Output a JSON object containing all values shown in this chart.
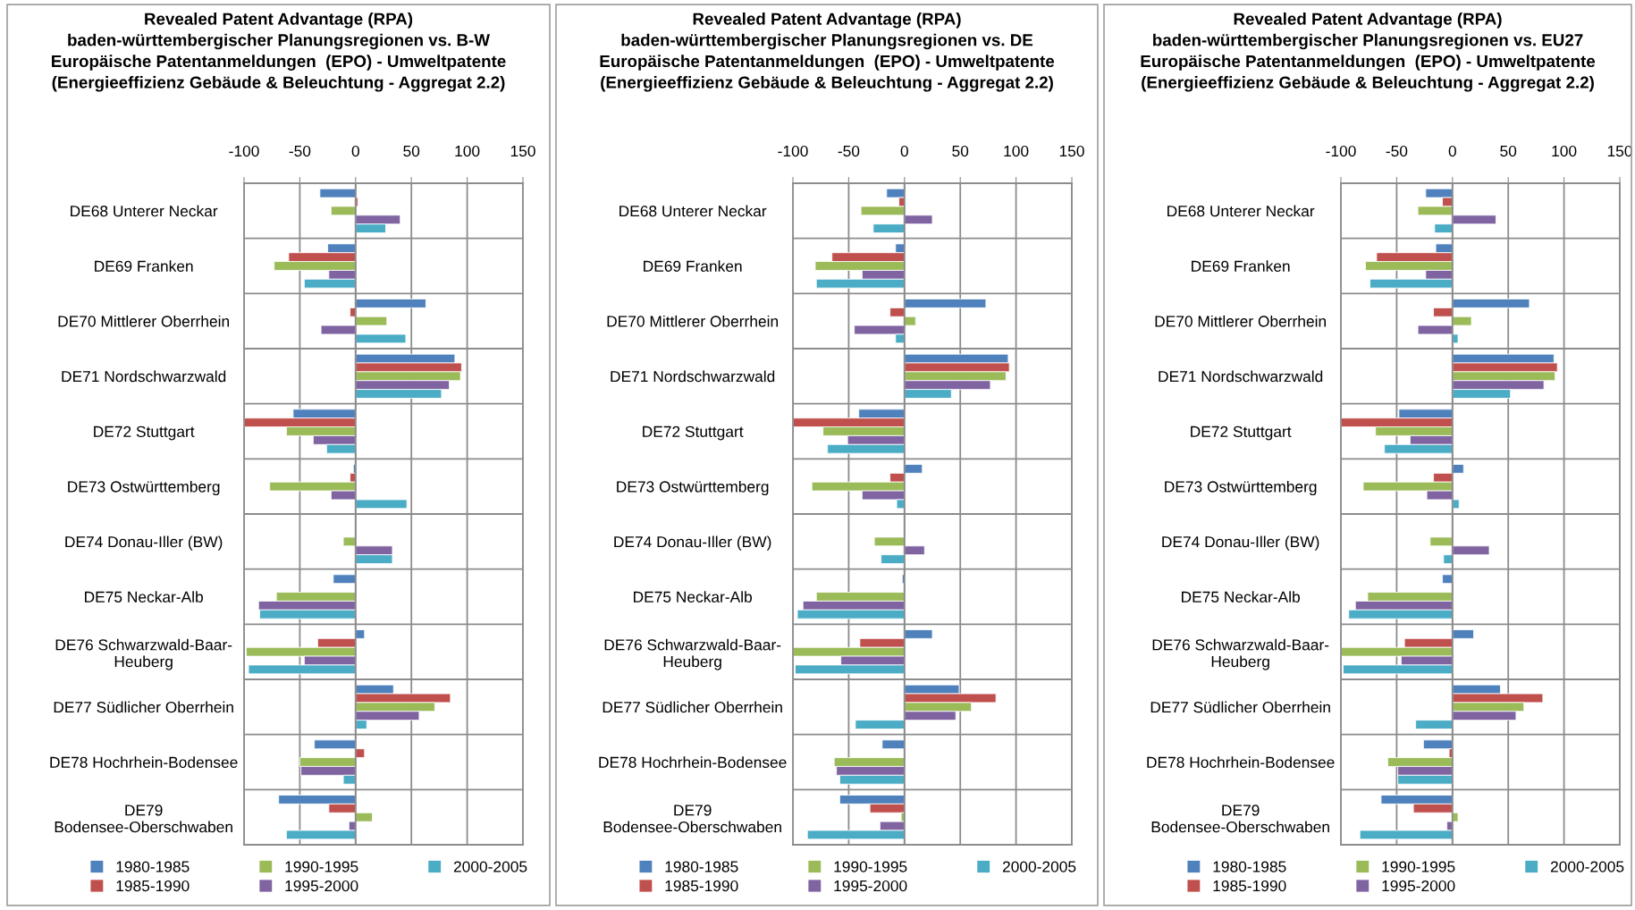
{
  "chart_data": [
    {
      "type": "bar",
      "orientation": "horizontal",
      "title": "Revealed Patent Advantage (RPA)\nbaden-württembergischer Planungsregionen vs. B-W\nEuropäische Patentanmeldungen  (EPO) - Umweltpatente\n(Energieeffizienz Gebäude & Beleuchtung - Aggregat 2.2)",
      "categories": [
        "DE68 Unterer Neckar",
        "DE69 Franken",
        "DE70 Mittlerer Oberrhein",
        "DE71 Nordschwarzwald",
        "DE72 Stuttgart",
        "DE73 Ostwürttemberg",
        "DE74 Donau-Iller (BW)",
        "DE75 Neckar-Alb",
        "DE76 Schwarzwald-Baar-\nHeuberg",
        "DE77 Südlicher Oberrhein",
        "DE78 Hochrhein-Bodensee",
        "DE79\nBodensee-Oberschwaben"
      ],
      "series": [
        {
          "name": "1980-1985",
          "color": "#4f81bd",
          "values": [
            -32,
            -25,
            63,
            89,
            -56,
            -2,
            null,
            -20,
            8,
            34,
            -37,
            -69
          ]
        },
        {
          "name": "1985-1990",
          "color": "#c0504d",
          "values": [
            2,
            -60,
            -5,
            95,
            -100,
            -5,
            null,
            null,
            -34,
            85,
            8,
            -24
          ]
        },
        {
          "name": "1990-1995",
          "color": "#9bbb59",
          "values": [
            -22,
            -73,
            28,
            94,
            -62,
            -77,
            -11,
            -71,
            -98,
            71,
            -50,
            15
          ]
        },
        {
          "name": "1995-2000",
          "color": "#8064a2",
          "values": [
            40,
            -24,
            -31,
            84,
            -38,
            -22,
            33,
            -87,
            -46,
            57,
            -49,
            -6
          ]
        },
        {
          "name": "2000-2005",
          "color": "#4bacc6",
          "values": [
            27,
            -46,
            45,
            77,
            -26,
            46,
            33,
            -86,
            -96,
            10,
            -11,
            -62
          ]
        }
      ],
      "xlim": [
        -100,
        150
      ],
      "xticks": [
        -100,
        -50,
        0,
        50,
        100,
        150
      ],
      "grid": true,
      "legend": "bottom"
    },
    {
      "type": "bar",
      "orientation": "horizontal",
      "title": "Revealed Patent Advantage (RPA)\nbaden-württembergischer Planungsregionen vs. DE\nEuropäische Patentanmeldungen  (EPO) - Umweltpatente\n(Energieeffizienz Gebäude & Beleuchtung - Aggregat 2.2)",
      "categories": [
        "DE68 Unterer Neckar",
        "DE69 Franken",
        "DE70 Mittlerer Oberrhein",
        "DE71 Nordschwarzwald",
        "DE72 Stuttgart",
        "DE73 Ostwürttemberg",
        "DE74 Donau-Iller (BW)",
        "DE75 Neckar-Alb",
        "DE76 Schwarzwald-Baar-\nHeuberg",
        "DE77 Südlicher Oberrhein",
        "DE78 Hochrhein-Bodensee",
        "DE79\nBodensee-Oberschwaben"
      ],
      "series": [
        {
          "name": "1980-1985",
          "color": "#4f81bd",
          "values": [
            -16,
            -8,
            73,
            93,
            -41,
            16,
            null,
            -2,
            25,
            49,
            -20,
            -58
          ]
        },
        {
          "name": "1985-1990",
          "color": "#c0504d",
          "values": [
            -5,
            -65,
            -13,
            94,
            -100,
            -13,
            null,
            null,
            -40,
            82,
            null,
            -31
          ]
        },
        {
          "name": "1990-1995",
          "color": "#9bbb59",
          "values": [
            -39,
            -80,
            10,
            91,
            -73,
            -83,
            -27,
            -79,
            -100,
            60,
            -63,
            -3
          ]
        },
        {
          "name": "1995-2000",
          "color": "#8064a2",
          "values": [
            25,
            -38,
            -45,
            77,
            -51,
            -38,
            18,
            -91,
            -57,
            46,
            -61,
            -22
          ]
        },
        {
          "name": "2000-2005",
          "color": "#4bacc6",
          "values": [
            -28,
            -79,
            -8,
            42,
            -69,
            -7,
            -21,
            -96,
            -98,
            -44,
            -58,
            -87
          ]
        }
      ],
      "xlim": [
        -100,
        150
      ],
      "xticks": [
        -100,
        -50,
        0,
        50,
        100,
        150
      ],
      "grid": true,
      "legend": "bottom"
    },
    {
      "type": "bar",
      "orientation": "horizontal",
      "title": "Revealed Patent Advantage (RPA)\nbaden-württembergischer Planungsregionen vs. EU27\nEuropäische Patentanmeldungen  (EPO) - Umweltpatente\n(Energieeffizienz Gebäude & Beleuchtung - Aggregat 2.2)",
      "categories": [
        "DE68 Unterer Neckar",
        "DE69 Franken",
        "DE70 Mittlerer Oberrhein",
        "DE71 Nordschwarzwald",
        "DE72 Stuttgart",
        "DE73 Ostwürttemberg",
        "DE74 Donau-Iller (BW)",
        "DE75 Neckar-Alb",
        "DE76 Schwarzwald-Baar-\nHeuberg",
        "DE77 Südlicher Oberrhein",
        "DE78 Hochrhein-Bodensee",
        "DE79\nBodensee-Oberschwaben"
      ],
      "series": [
        {
          "name": "1980-1985",
          "color": "#4f81bd",
          "values": [
            -24,
            -15,
            69,
            91,
            -48,
            10,
            null,
            -9,
            19,
            43,
            -26,
            -64
          ]
        },
        {
          "name": "1985-1990",
          "color": "#c0504d",
          "values": [
            -9,
            -68,
            -17,
            94,
            -100,
            -17,
            null,
            null,
            -43,
            81,
            -3,
            -35
          ]
        },
        {
          "name": "1990-1995",
          "color": "#9bbb59",
          "values": [
            -31,
            -78,
            17,
            92,
            -69,
            -80,
            -20,
            -76,
            -100,
            64,
            -58,
            5
          ]
        },
        {
          "name": "1995-2000",
          "color": "#8064a2",
          "values": [
            39,
            -24,
            -31,
            82,
            -38,
            -23,
            33,
            -87,
            -46,
            57,
            -49,
            -5
          ]
        },
        {
          "name": "2000-2005",
          "color": "#4bacc6",
          "values": [
            -16,
            -74,
            5,
            52,
            -61,
            6,
            -8,
            -93,
            -98,
            -33,
            -49,
            -83
          ]
        }
      ],
      "xlim": [
        -100,
        150
      ],
      "xticks": [
        -100,
        -50,
        0,
        50,
        100,
        150
      ],
      "grid": true,
      "legend": "bottom"
    }
  ]
}
